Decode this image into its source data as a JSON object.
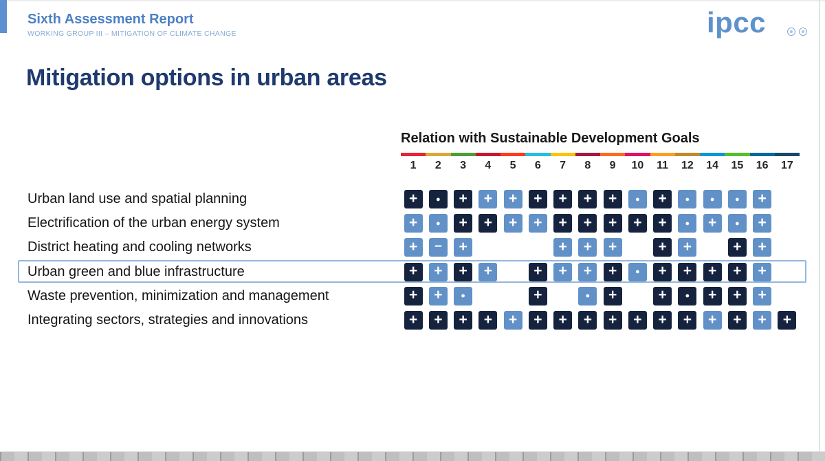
{
  "page": {
    "report_title": "Sixth Assessment Report",
    "report_subtitle": "WORKING GROUP III – MITIGATION OF CLIMATE CHANGE",
    "logo_text": "ipcc",
    "slide_title": "Mitigation options in urban areas",
    "accent_blue": "#4c80c4",
    "title_navy": "#1e3a6e",
    "highlight_border": "#94b7dc"
  },
  "chart_data": {
    "type": "table",
    "title": "Relation with Sustainable Development Goals",
    "columns": [
      "1",
      "2",
      "3",
      "4",
      "5",
      "6",
      "7",
      "8",
      "9",
      "10",
      "11",
      "12",
      "14",
      "15",
      "16",
      "17"
    ],
    "sdg_bar_colors": [
      "#E5243B",
      "#DDA63A",
      "#4C9F38",
      "#C5192D",
      "#FF3A21",
      "#26BDE2",
      "#FCC30B",
      "#A21942",
      "#FD6925",
      "#DD1367",
      "#FD9D24",
      "#BF8B2E",
      "#0A97D9",
      "#56C02B",
      "#00689D",
      "#19486A"
    ],
    "cell_types": {
      "d+": {
        "bg": "#16233e",
        "glyph": "+"
      },
      "l+": {
        "bg": "#6191c7",
        "glyph": "+"
      },
      "d.": {
        "bg": "#16233e",
        "glyph": "●"
      },
      "l.": {
        "bg": "#6191c7",
        "glyph": "●"
      },
      "l-": {
        "bg": "#6191c7",
        "glyph": "−"
      }
    },
    "rows": [
      {
        "label": "Urban land use and spatial planning",
        "highlighted": false,
        "cells": [
          "d+",
          "d.",
          "d+",
          "l+",
          "l+",
          "d+",
          "d+",
          "d+",
          "d+",
          "l.",
          "d+",
          "l.",
          "l.",
          "l.",
          "l+",
          ""
        ]
      },
      {
        "label": "Electrification of the urban energy system",
        "highlighted": false,
        "cells": [
          "l+",
          "l.",
          "d+",
          "d+",
          "l+",
          "l+",
          "d+",
          "d+",
          "d+",
          "d+",
          "d+",
          "l.",
          "l+",
          "l.",
          "l+",
          ""
        ]
      },
      {
        "label": "District heating and cooling networks",
        "highlighted": false,
        "cells": [
          "l+",
          "l-",
          "l+",
          "",
          "",
          "",
          "l+",
          "l+",
          "l+",
          "",
          "d+",
          "l+",
          "",
          "d+",
          "l+",
          ""
        ]
      },
      {
        "label": "Urban green and blue infrastructure",
        "highlighted": true,
        "cells": [
          "d+",
          "l+",
          "d+",
          "l+",
          "",
          "d+",
          "l+",
          "l+",
          "d+",
          "l.",
          "d+",
          "d+",
          "d+",
          "d+",
          "l+",
          ""
        ]
      },
      {
        "label": "Waste prevention, minimization and management",
        "highlighted": false,
        "cells": [
          "d+",
          "l+",
          "l.",
          "",
          "",
          "d+",
          "",
          "l.",
          "d+",
          "",
          "d+",
          "d.",
          "d+",
          "d+",
          "l+",
          ""
        ]
      },
      {
        "label": "Integrating sectors, strategies and innovations",
        "highlighted": false,
        "cells": [
          "d+",
          "d+",
          "d+",
          "d+",
          "l+",
          "d+",
          "d+",
          "d+",
          "d+",
          "d+",
          "d+",
          "d+",
          "l+",
          "d+",
          "l+",
          "d+"
        ]
      }
    ]
  }
}
